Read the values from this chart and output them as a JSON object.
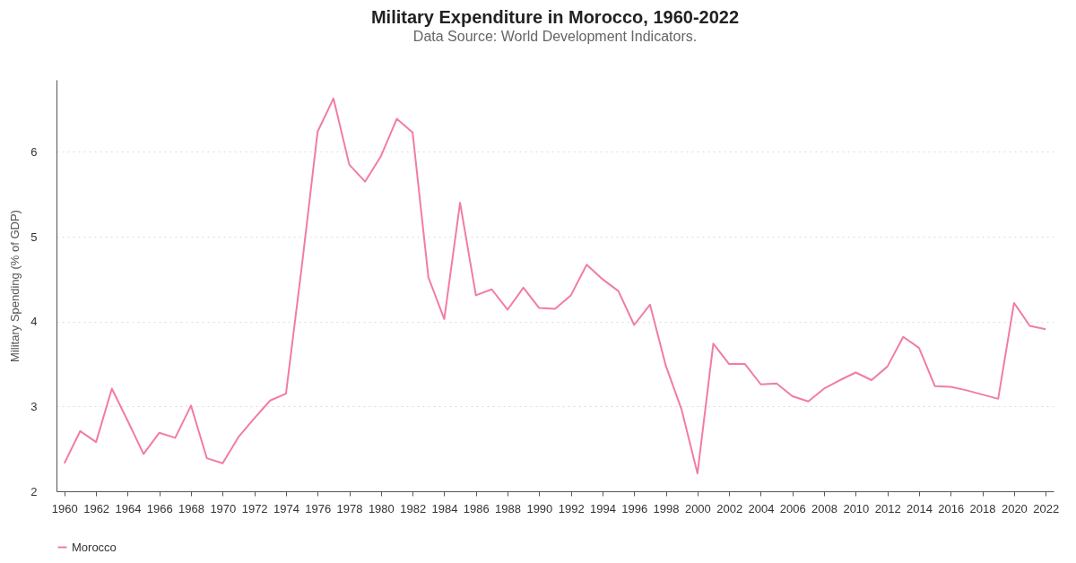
{
  "chart_data": {
    "type": "line",
    "title": "Military Expenditure in Morocco, 1960-2022",
    "subtitle": "Data Source: World Development Indicators.",
    "ylabel": "Military Spending (% of GDP)",
    "x": [
      1960,
      1961,
      1962,
      1963,
      1964,
      1965,
      1966,
      1967,
      1968,
      1969,
      1970,
      1971,
      1972,
      1973,
      1974,
      1975,
      1976,
      1977,
      1978,
      1979,
      1980,
      1981,
      1982,
      1983,
      1984,
      1985,
      1986,
      1987,
      1988,
      1989,
      1990,
      1991,
      1992,
      1993,
      1994,
      1995,
      1996,
      1997,
      1998,
      1999,
      2000,
      2001,
      2002,
      2003,
      2004,
      2005,
      2006,
      2007,
      2008,
      2009,
      2010,
      2011,
      2012,
      2013,
      2014,
      2015,
      2016,
      2017,
      2018,
      2019,
      2020,
      2021,
      2022
    ],
    "series": [
      {
        "name": "Morocco",
        "color": "#f17ca7",
        "values": [
          2.33,
          2.71,
          2.58,
          3.21,
          2.83,
          2.44,
          2.69,
          2.63,
          3.01,
          2.39,
          2.33,
          2.64,
          2.86,
          3.07,
          3.15,
          4.65,
          6.24,
          6.63,
          5.85,
          5.65,
          5.95,
          6.39,
          6.23,
          4.52,
          4.03,
          5.4,
          4.31,
          4.38,
          4.14,
          4.4,
          4.16,
          4.15,
          4.31,
          4.67,
          4.5,
          4.36,
          3.96,
          4.2,
          3.48,
          2.96,
          2.21,
          3.74,
          3.5,
          3.5,
          3.26,
          3.27,
          3.12,
          3.06,
          3.21,
          3.31,
          3.4,
          3.31,
          3.47,
          3.82,
          3.69,
          3.24,
          3.23,
          3.19,
          3.14,
          3.09,
          4.22,
          3.95,
          3.91
        ]
      }
    ],
    "xlim": [
      1959.5,
      2022.5
    ],
    "xticks": [
      1960,
      1962,
      1964,
      1966,
      1968,
      1970,
      1972,
      1974,
      1976,
      1978,
      1980,
      1982,
      1984,
      1986,
      1988,
      1990,
      1992,
      1994,
      1996,
      1998,
      2000,
      2002,
      2004,
      2006,
      2008,
      2010,
      2012,
      2014,
      2016,
      2018,
      2020,
      2022
    ],
    "ylim": [
      2,
      6.85
    ],
    "yticks": [
      2,
      3,
      4,
      5,
      6
    ],
    "grid": "y",
    "legend": "bottom",
    "marker": "none",
    "line_style": "solid"
  }
}
